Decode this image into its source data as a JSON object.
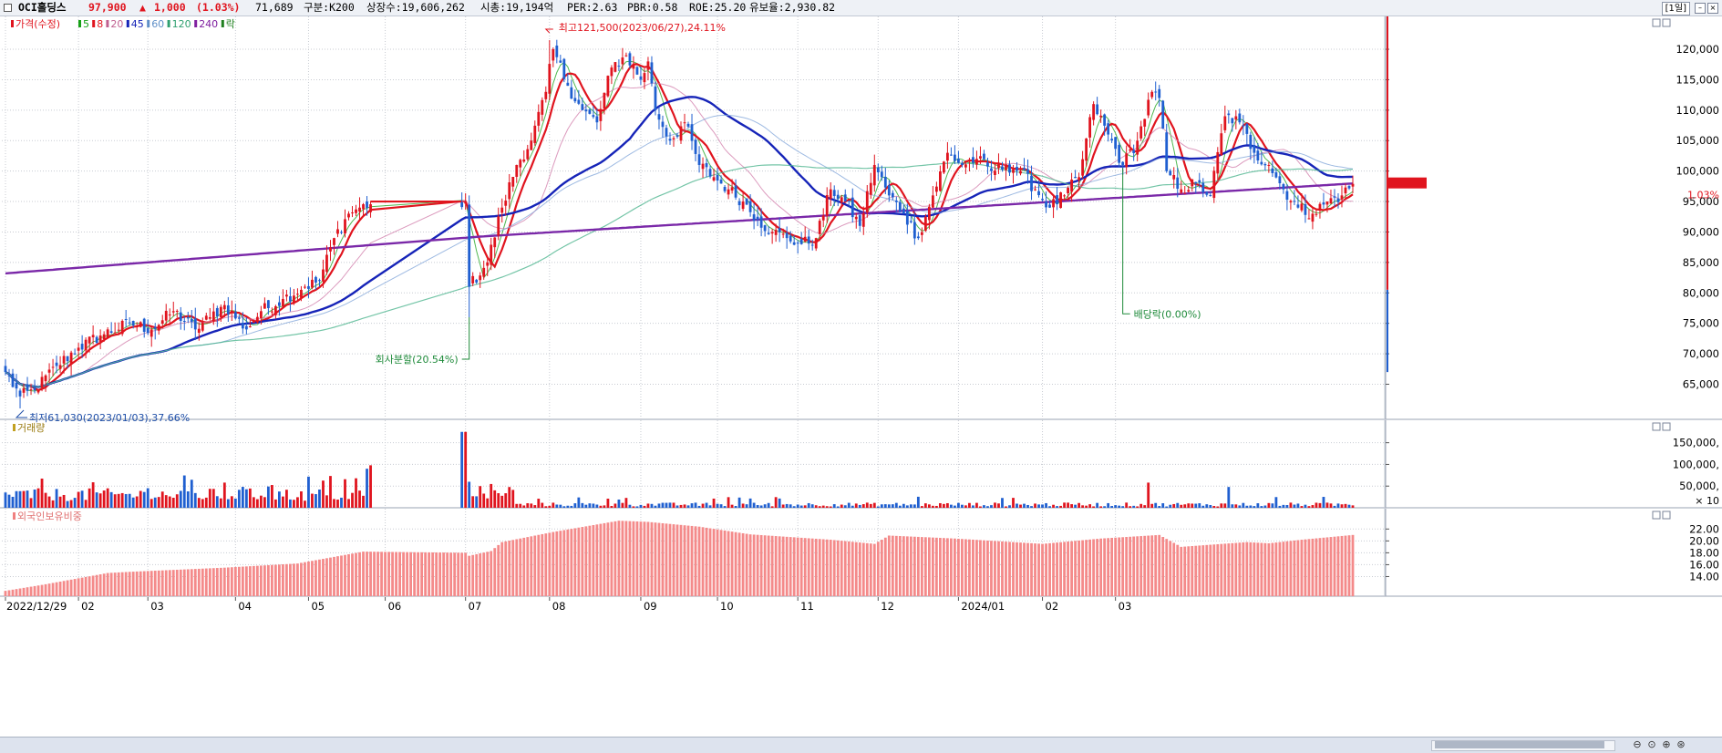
{
  "header": {
    "stock_name": "OCI홀딩스",
    "price": "97,900",
    "change_arrow": "▲",
    "change": "1,000",
    "change_pct": "(1.03%)",
    "volume": "71,689",
    "market": "구분:K200",
    "shares": "상장수:19,606,262",
    "market_cap": "시총:19,194억",
    "per": "PER:2.63",
    "pbr": "PBR:0.58",
    "roe": "ROE:25.20",
    "float": "유보율:2,930.82",
    "period": "[1일]",
    "colors": {
      "up": "#e0141e",
      "down": "#1f5fd0",
      "text": "#000000"
    }
  },
  "price_panel": {
    "legend": [
      {
        "text": "가격(수정)",
        "color": "#e0141e"
      },
      {
        "text": "5",
        "color": "#16a016"
      },
      {
        "text": "8",
        "color": "#e0141e"
      },
      {
        "text": "20",
        "color": "#c06090"
      },
      {
        "text": "45",
        "color": "#1624b8"
      },
      {
        "text": "60",
        "color": "#6090c8"
      },
      {
        "text": "120",
        "color": "#30a070"
      },
      {
        "text": "240",
        "color": "#8020a0"
      },
      {
        "text": "락",
        "color": "#208020"
      }
    ],
    "annotations": {
      "high": "최고121,500(2023/06/27),24.11%",
      "low": "최저61,030(2023/01/03),37.66%",
      "split": "회사분할(20.54%)",
      "dividend": "배당락(0.00%)"
    },
    "last_price_label": "97,900",
    "last_pct_label": "1.03%"
  },
  "volume_panel": {
    "title": "거래량",
    "unit_label": "× 10"
  },
  "foreign_panel": {
    "title": "외국인보유비중"
  },
  "x_axis": {
    "labels": [
      "2022/12/29",
      "02",
      "03",
      "04",
      "05",
      "06",
      "07",
      "08",
      "09",
      "10",
      "11",
      "12",
      "2024/01",
      "02",
      "03"
    ]
  },
  "chart_data": [
    {
      "type": "candlestick",
      "y_ticks": [
        65000,
        70000,
        75000,
        80000,
        85000,
        90000,
        95000,
        100000,
        105000,
        110000,
        115000,
        120000
      ],
      "ylim": [
        61030,
        122700
      ],
      "x_labels": [
        "2022/12/29",
        "02",
        "03",
        "04",
        "05",
        "06",
        "07",
        "08",
        "09",
        "10",
        "11",
        "12",
        "2024/01",
        "02",
        "03"
      ],
      "anchor_closes": [
        [
          0,
          67000
        ],
        [
          4,
          63000
        ],
        [
          8,
          64000
        ],
        [
          14,
          68000
        ],
        [
          20,
          71000
        ],
        [
          26,
          73000
        ],
        [
          34,
          75000
        ],
        [
          40,
          74000
        ],
        [
          46,
          77000
        ],
        [
          52,
          74000
        ],
        [
          56,
          76000
        ],
        [
          60,
          78000
        ],
        [
          66,
          74000
        ],
        [
          70,
          77000
        ],
        [
          76,
          79000
        ],
        [
          82,
          81000
        ],
        [
          86,
          82000
        ],
        [
          90,
          89000
        ],
        [
          94,
          93000
        ],
        [
          97,
          94000
        ],
        [
          102,
          95000
        ],
        [
          108,
          95000
        ],
        [
          118,
          95000
        ],
        [
          126,
          95000
        ],
        [
          127,
          81000
        ],
        [
          132,
          85000
        ],
        [
          136,
          94000
        ],
        [
          140,
          101000
        ],
        [
          144,
          105000
        ],
        [
          148,
          113000
        ],
        [
          150,
          120000
        ],
        [
          154,
          114000
        ],
        [
          158,
          110000
        ],
        [
          162,
          108000
        ],
        [
          166,
          117000
        ],
        [
          170,
          119000
        ],
        [
          174,
          115000
        ],
        [
          176,
          118000
        ],
        [
          178,
          110000
        ],
        [
          182,
          105000
        ],
        [
          186,
          108000
        ],
        [
          190,
          101000
        ],
        [
          194,
          99000
        ],
        [
          198,
          97000
        ],
        [
          202,
          95000
        ],
        [
          206,
          92000
        ],
        [
          210,
          90000
        ],
        [
          214,
          89000
        ],
        [
          218,
          88000
        ],
        [
          222,
          89000
        ],
        [
          226,
          97000
        ],
        [
          230,
          95000
        ],
        [
          234,
          91000
        ],
        [
          238,
          101000
        ],
        [
          242,
          96000
        ],
        [
          246,
          93000
        ],
        [
          250,
          89000
        ],
        [
          254,
          96000
        ],
        [
          258,
          103000
        ],
        [
          262,
          101000
        ],
        [
          266,
          102000
        ],
        [
          270,
          100000
        ],
        [
          274,
          101000
        ],
        [
          278,
          100000
        ],
        [
          282,
          97000
        ],
        [
          286,
          94000
        ],
        [
          290,
          96000
        ],
        [
          294,
          99000
        ],
        [
          298,
          111000
        ],
        [
          302,
          106000
        ],
        [
          306,
          101000
        ],
        [
          310,
          105000
        ],
        [
          314,
          113000
        ],
        [
          316,
          112000
        ],
        [
          318,
          100000
        ],
        [
          322,
          97000
        ],
        [
          326,
          98000
        ],
        [
          330,
          96000
        ],
        [
          334,
          109000
        ],
        [
          338,
          108000
        ],
        [
          342,
          103000
        ],
        [
          346,
          101000
        ],
        [
          350,
          97000
        ],
        [
          354,
          94000
        ],
        [
          358,
          93000
        ],
        [
          362,
          95000
        ],
        [
          366,
          96000
        ],
        [
          369,
          97900
        ]
      ],
      "ma_periods": [
        5,
        8,
        20,
        45,
        60,
        120,
        240
      ],
      "ma_colors": [
        "#16a016",
        "#e0141e",
        "#d07aa8",
        "#1624b8",
        "#7ea3d8",
        "#46b28a",
        "#7a28a8"
      ]
    },
    {
      "type": "bar",
      "title": "거래량",
      "y_ticks": [
        50000,
        100000,
        150000
      ],
      "ylim": [
        0,
        185000
      ],
      "note": "values in the chart's own units (×10)"
    },
    {
      "type": "bar",
      "title": "외국인보유비중",
      "y_ticks": [
        14.0,
        16.0,
        18.0,
        20.0,
        22.0
      ],
      "ylim": [
        10.7,
        24.5
      ],
      "anchors": [
        [
          0,
          11.6
        ],
        [
          10,
          12.6
        ],
        [
          28,
          14.6
        ],
        [
          34,
          14.8
        ],
        [
          60,
          15.5
        ],
        [
          80,
          16.2
        ],
        [
          98,
          18.2
        ],
        [
          126,
          18.0
        ],
        [
          127,
          17.5
        ],
        [
          133,
          18.3
        ],
        [
          136,
          19.8
        ],
        [
          150,
          21.5
        ],
        [
          168,
          23.4
        ],
        [
          176,
          23.2
        ],
        [
          190,
          22.4
        ],
        [
          204,
          21.1
        ],
        [
          226,
          20.2
        ],
        [
          238,
          19.5
        ],
        [
          242,
          20.9
        ],
        [
          260,
          20.4
        ],
        [
          284,
          19.5
        ],
        [
          300,
          20.4
        ],
        [
          316,
          21.0
        ],
        [
          322,
          19.0
        ],
        [
          340,
          19.8
        ],
        [
          346,
          19.6
        ],
        [
          355,
          20.2
        ],
        [
          369,
          21.0
        ]
      ]
    }
  ]
}
